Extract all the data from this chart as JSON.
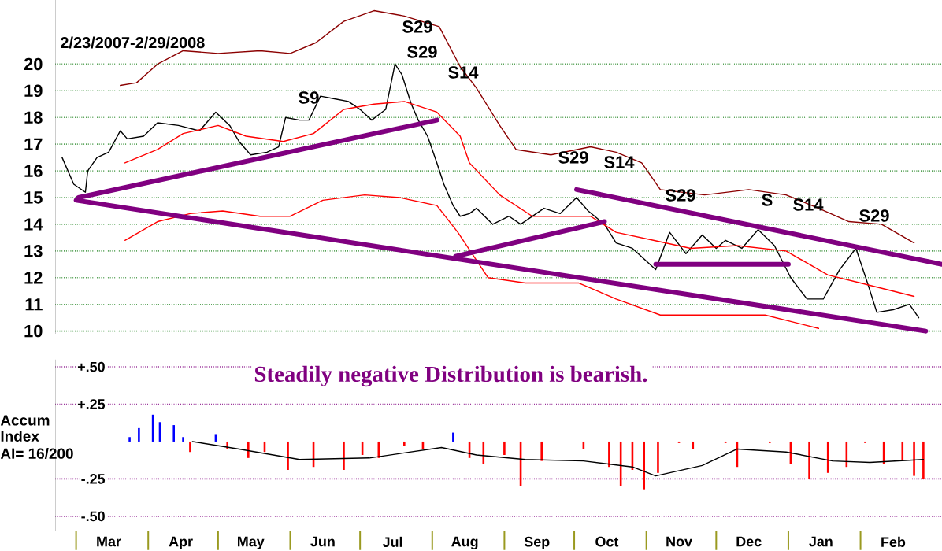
{
  "chart_data": [
    {
      "type": "line",
      "subtitle": "2/23/2007-2/29/2008",
      "xlim": [
        "2007-02-20",
        "2008-03-07"
      ],
      "ylim": [
        9.9,
        22.4
      ],
      "yticks": [
        10,
        11,
        12,
        13,
        14,
        15,
        16,
        17,
        18,
        19,
        20
      ],
      "grid": "y",
      "tick_labels": "y",
      "series": [
        {
          "color": "#000000",
          "x": [
            "2007-02-23",
            "2007-02-28",
            "2007-03-05",
            "2007-03-06",
            "2007-03-10",
            "2007-03-15",
            "2007-03-20",
            "2007-03-23",
            "2007-03-30",
            "2007-04-05",
            "2007-04-14",
            "2007-04-23",
            "2007-04-30",
            "2007-05-06",
            "2007-05-10",
            "2007-05-15",
            "2007-05-22",
            "2007-05-27",
            "2007-05-30",
            "2007-06-05",
            "2007-06-09",
            "2007-06-14",
            "2007-06-20",
            "2007-06-26",
            "2007-07-01",
            "2007-07-06",
            "2007-07-12",
            "2007-07-16",
            "2007-07-19",
            "2007-07-23",
            "2007-07-26",
            "2007-07-30",
            "2007-08-03",
            "2007-08-06",
            "2007-08-10",
            "2007-08-13",
            "2007-08-17",
            "2007-08-20",
            "2007-08-27",
            "2007-09-03",
            "2007-09-08",
            "2007-09-18",
            "2007-09-25",
            "2007-10-02",
            "2007-10-07",
            "2007-10-14",
            "2007-10-19",
            "2007-10-26",
            "2007-10-31",
            "2007-11-05",
            "2007-11-11",
            "2007-11-18",
            "2007-11-25",
            "2007-12-01",
            "2007-12-05",
            "2007-12-12",
            "2007-12-19",
            "2007-12-26",
            "2008-01-02",
            "2008-01-09",
            "2008-01-16",
            "2008-01-23",
            "2008-01-30",
            "2008-02-04",
            "2008-02-08",
            "2008-02-15",
            "2008-02-22",
            "2008-02-26"
          ],
          "values": [
            16.5,
            15.5,
            15.2,
            16.0,
            16.5,
            16.7,
            17.5,
            17.2,
            17.3,
            17.8,
            17.7,
            17.5,
            18.2,
            17.7,
            17.1,
            16.6,
            16.7,
            16.9,
            18.0,
            17.9,
            17.9,
            18.8,
            18.7,
            18.6,
            18.3,
            17.9,
            18.3,
            20.0,
            19.6,
            18.5,
            17.9,
            17.3,
            16.3,
            15.5,
            14.7,
            14.3,
            14.4,
            14.6,
            14.0,
            14.3,
            14.0,
            14.6,
            14.4,
            15.0,
            14.5,
            14.0,
            13.3,
            13.1,
            12.7,
            12.3,
            13.7,
            12.9,
            13.6,
            13.1,
            13.4,
            13.1,
            13.8,
            13.2,
            12.0,
            11.2,
            11.2,
            12.3,
            13.1,
            11.8,
            10.7,
            10.8,
            11.0,
            10.5
          ]
        },
        {
          "color": "#8b0000",
          "x": [
            "2007-03-20",
            "2007-03-27",
            "2007-04-05",
            "2007-04-16",
            "2007-05-01",
            "2007-05-19",
            "2007-06-01",
            "2007-06-12",
            "2007-06-24",
            "2007-07-07",
            "2007-07-20",
            "2007-08-04",
            "2007-08-13",
            "2007-08-20",
            "2007-08-30",
            "2007-09-06",
            "2007-09-21",
            "2007-10-08",
            "2007-10-19",
            "2007-10-30",
            "2007-11-07",
            "2007-11-26",
            "2007-12-15",
            "2007-12-31",
            "2008-01-14",
            "2008-01-27",
            "2008-02-10",
            "2008-02-24"
          ],
          "values": [
            19.2,
            19.3,
            20.0,
            20.5,
            20.4,
            20.5,
            20.4,
            20.8,
            21.6,
            22.0,
            21.8,
            21.4,
            19.9,
            19.1,
            17.7,
            16.8,
            16.6,
            16.9,
            16.7,
            16.3,
            15.3,
            15.1,
            15.3,
            15.1,
            14.6,
            14.1,
            14.0,
            13.3
          ]
        },
        {
          "color": "#ff0000",
          "x": [
            "2007-03-22",
            "2007-04-05",
            "2007-04-16",
            "2007-05-01",
            "2007-05-13",
            "2007-05-29",
            "2007-06-11",
            "2007-06-24",
            "2007-07-07",
            "2007-07-20",
            "2007-08-03",
            "2007-08-13",
            "2007-08-17",
            "2007-08-30",
            "2007-09-13",
            "2007-10-08",
            "2007-10-19",
            "2007-11-04",
            "2007-11-20",
            "2007-12-10",
            "2007-12-31",
            "2008-01-18",
            "2008-02-01",
            "2008-02-24"
          ],
          "values": [
            16.3,
            16.8,
            17.4,
            17.7,
            17.3,
            17.1,
            17.4,
            18.3,
            18.5,
            18.6,
            18.2,
            17.3,
            16.3,
            15.1,
            14.3,
            14.3,
            13.7,
            13.4,
            13.1,
            13.2,
            13.0,
            12.1,
            11.8,
            11.3
          ]
        },
        {
          "color": "#ff0000",
          "x": [
            "2007-03-22",
            "2007-04-05",
            "2007-04-19",
            "2007-05-03",
            "2007-05-19",
            "2007-06-01",
            "2007-06-15",
            "2007-07-03",
            "2007-07-18",
            "2007-08-03",
            "2007-08-12",
            "2007-08-25",
            "2007-09-10",
            "2007-10-03",
            "2007-10-19",
            "2007-11-07",
            "2007-12-01",
            "2007-12-22",
            "2008-01-14"
          ],
          "values": [
            13.4,
            14.1,
            14.4,
            14.5,
            14.3,
            14.3,
            14.9,
            15.1,
            15.0,
            14.7,
            13.7,
            12.0,
            11.8,
            11.8,
            11.2,
            10.6,
            10.6,
            10.6,
            10.1
          ]
        },
        {
          "color": "#800080",
          "x": [
            "2007-03-02",
            "2007-08-03"
          ],
          "values": [
            15.0,
            17.9
          ]
        },
        {
          "color": "#800080",
          "x": [
            "2007-03-01",
            "2008-02-29"
          ],
          "values": [
            14.9,
            10.0
          ]
        },
        {
          "color": "#800080",
          "x": [
            "2007-08-11",
            "2007-10-14"
          ],
          "values": [
            12.8,
            14.1
          ]
        },
        {
          "color": "#800080",
          "x": [
            "2007-10-02",
            "2008-03-07"
          ],
          "values": [
            15.3,
            12.5
          ]
        },
        {
          "color": "#800080",
          "x": [
            "2007-11-05",
            "2008-01-01"
          ],
          "values": [
            12.5,
            12.5
          ]
        }
      ],
      "annotations": [
        "S29",
        "S29",
        "S14",
        "S9",
        "S29",
        "S14",
        "S29",
        "S",
        "S14",
        "S29"
      ]
    },
    {
      "type": "bar",
      "xlim": [
        "2007-02-20",
        "2008-03-07"
      ],
      "ylim": [
        -0.6,
        0.55
      ],
      "grid": "y",
      "yticks": [
        {
          "value": 0.5,
          "label": "+.50"
        },
        {
          "value": 0.25,
          "label": "+.25"
        },
        {
          "value": -0.25,
          "label": "-.25"
        },
        {
          "value": -0.5,
          "label": "-.50"
        }
      ],
      "xticks": [
        {
          "value": "2007-03-01",
          "label": null
        },
        {
          "value": "2007-04-01",
          "label": null
        },
        {
          "value": "2007-05-01",
          "label": null
        },
        {
          "value": "2007-06-01",
          "label": null
        },
        {
          "value": "2007-07-01",
          "label": null
        },
        {
          "value": "2007-08-01",
          "label": null
        },
        {
          "value": "2007-09-01",
          "label": null
        },
        {
          "value": "2007-10-01",
          "label": null
        },
        {
          "value": "2007-11-01",
          "label": null
        },
        {
          "value": "2007-12-01",
          "label": null
        },
        {
          "value": "2008-01-01",
          "label": null
        },
        {
          "value": "2008-02-01",
          "label": null
        },
        {
          "value": "2007-03-15",
          "label": "Mar"
        },
        {
          "value": "2007-04-15",
          "label": "Apr"
        },
        {
          "value": "2007-05-15",
          "label": "May"
        },
        {
          "value": "2007-06-15",
          "label": "Jun"
        },
        {
          "value": "2007-07-15",
          "label": "Jul"
        },
        {
          "value": "2007-08-15",
          "label": "Aug"
        },
        {
          "value": "2007-09-15",
          "label": "Sep"
        },
        {
          "value": "2007-10-15",
          "label": "Oct"
        },
        {
          "value": "2007-11-15",
          "label": "Nov"
        },
        {
          "value": "2007-12-15",
          "label": "Dec"
        },
        {
          "value": "2008-01-15",
          "label": "Jan"
        },
        {
          "value": "2008-02-15",
          "label": "Feb"
        }
      ],
      "series": [
        {
          "type": "bar",
          "x": [
            "2007-03-24",
            "2007-03-28",
            "2007-04-03",
            "2007-04-06",
            "2007-04-12",
            "2007-04-16",
            "2007-04-19",
            "2007-04-24",
            "2007-04-30",
            "2007-05-05",
            "2007-05-14",
            "2007-05-21",
            "2007-05-31",
            "2007-06-11",
            "2007-06-24",
            "2007-07-02",
            "2007-07-09",
            "2007-07-20",
            "2007-07-28",
            "2007-08-10",
            "2007-08-17",
            "2007-08-23",
            "2007-09-01",
            "2007-09-08",
            "2007-09-17",
            "2007-10-05",
            "2007-10-16",
            "2007-10-21",
            "2007-10-26",
            "2007-10-31",
            "2007-11-06",
            "2007-11-15",
            "2007-11-21",
            "2007-12-05",
            "2007-12-10",
            "2007-12-24",
            "2008-01-02",
            "2008-01-10",
            "2008-01-18",
            "2008-01-26",
            "2008-02-03",
            "2008-02-11",
            "2008-02-19",
            "2008-02-24",
            "2008-02-28"
          ],
          "values": [
            0.03,
            0.09,
            0.18,
            0.13,
            0.11,
            0.03,
            -0.07,
            null,
            0.05,
            -0.05,
            -0.11,
            -0.07,
            -0.19,
            -0.17,
            -0.19,
            -0.09,
            -0.11,
            -0.03,
            -0.05,
            0.06,
            -0.11,
            -0.15,
            -0.09,
            -0.3,
            -0.13,
            -0.05,
            -0.17,
            -0.3,
            -0.19,
            -0.32,
            -0.21,
            -0.01,
            -0.05,
            -0.01,
            -0.17,
            -0.01,
            -0.15,
            -0.25,
            -0.21,
            -0.17,
            -0.01,
            -0.15,
            -0.13,
            -0.23,
            -0.25
          ],
          "colors": [
            "#0000ff",
            "#0000ff",
            "#0000ff",
            "#0000ff",
            "#0000ff",
            "#0000ff",
            "#ff0000",
            "#ff0000",
            "#0000ff",
            "#ff0000",
            "#ff0000",
            "#ff0000",
            "#ff0000",
            "#ff0000",
            "#ff0000",
            "#ff0000",
            "#ff0000",
            "#ff0000",
            "#ff0000",
            "#0000ff",
            "#ff0000",
            "#ff0000",
            "#ff0000",
            "#ff0000",
            "#ff0000",
            "#ff0000",
            "#ff0000",
            "#ff0000",
            "#ff0000",
            "#ff0000",
            "#ff0000",
            "#ff0000",
            "#ff0000",
            "#ff0000",
            "#ff0000",
            "#ff0000",
            "#ff0000",
            "#ff0000",
            "#ff0000",
            "#ff0000",
            "#ff0000",
            "#ff0000",
            "#ff0000",
            "#ff0000",
            "#ff0000"
          ]
        },
        {
          "type": "line",
          "color": "#000000",
          "x": [
            "2007-04-20",
            "2007-05-10",
            "2007-06-05",
            "2007-07-05",
            "2007-08-05",
            "2007-08-20",
            "2007-09-10",
            "2007-10-05",
            "2007-10-26",
            "2007-11-05",
            "2007-11-25",
            "2007-12-10",
            "2007-12-31",
            "2008-01-20",
            "2008-02-05",
            "2008-02-28"
          ],
          "values": [
            0.0,
            -0.05,
            -0.12,
            -0.11,
            -0.04,
            -0.09,
            -0.12,
            -0.13,
            -0.17,
            -0.23,
            -0.16,
            -0.05,
            -0.07,
            -0.13,
            -0.14,
            -0.12
          ]
        }
      ],
      "annotations": [
        "Accum",
        "Index",
        "AI= 16/200",
        "Steadily negative Distribution is bearish."
      ]
    }
  ]
}
